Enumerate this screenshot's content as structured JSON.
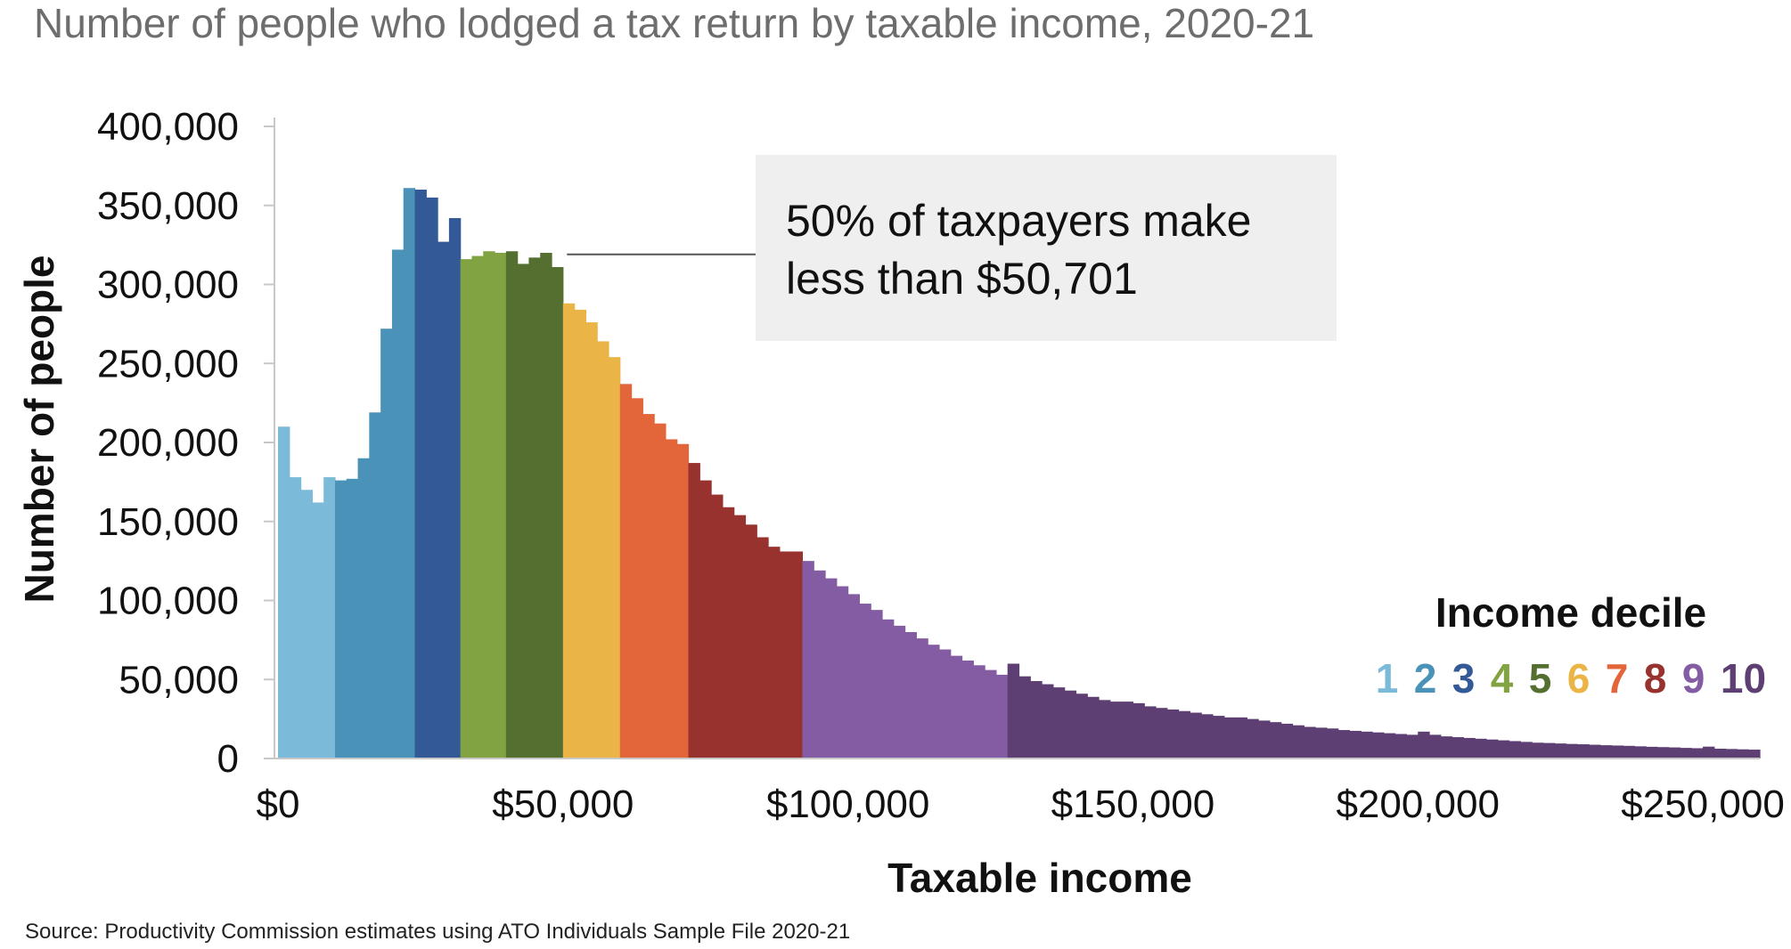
{
  "chart_data": {
    "type": "bar",
    "title": "Number of people who lodged a tax return by taxable income, 2020-21",
    "xlabel": "Taxable income",
    "ylabel": "Number of people",
    "source": "Source: Productivity Commission estimates using ATO Individuals Sample File 2020-21",
    "xlim": [
      0,
      260000
    ],
    "ylim": [
      0,
      400000
    ],
    "bin_width": 2000,
    "x_ticks": [
      {
        "value": 0,
        "label": "$0"
      },
      {
        "value": 50000,
        "label": "$50,000"
      },
      {
        "value": 100000,
        "label": "$100,000"
      },
      {
        "value": 150000,
        "label": "$150,000"
      },
      {
        "value": 200000,
        "label": "$200,000"
      },
      {
        "value": 250000,
        "label": "$250,000"
      }
    ],
    "y_ticks": [
      {
        "value": 0,
        "label": "0"
      },
      {
        "value": 50000,
        "label": "50,000"
      },
      {
        "value": 100000,
        "label": "100,000"
      },
      {
        "value": 150000,
        "label": "150,000"
      },
      {
        "value": 200000,
        "label": "200,000"
      },
      {
        "value": 250000,
        "label": "250,000"
      },
      {
        "value": 300000,
        "label": "300,000"
      },
      {
        "value": 350000,
        "label": "350,000"
      },
      {
        "value": 400000,
        "label": "400,000"
      }
    ],
    "grid": false,
    "legend": {
      "title": "Income decile",
      "position": "bottom-right",
      "items": [
        {
          "label": "1",
          "color": "#7cbad9"
        },
        {
          "label": "2",
          "color": "#4a92b8"
        },
        {
          "label": "3",
          "color": "#335a96"
        },
        {
          "label": "4",
          "color": "#81a342"
        },
        {
          "label": "5",
          "color": "#556f31"
        },
        {
          "label": "6",
          "color": "#ebb446"
        },
        {
          "label": "7",
          "color": "#e3663a"
        },
        {
          "label": "8",
          "color": "#98322e"
        },
        {
          "label": "9",
          "color": "#845ca3"
        },
        {
          "label": "10",
          "color": "#5e3f73"
        }
      ]
    },
    "annotation": {
      "lines": [
        "50% of taxpayers make",
        "less than $50,701"
      ],
      "x": 50701,
      "y": 319000
    },
    "bins": [
      {
        "x": 0,
        "y": 210000,
        "decile": 1
      },
      {
        "x": 2000,
        "y": 178000,
        "decile": 1
      },
      {
        "x": 4000,
        "y": 170000,
        "decile": 1
      },
      {
        "x": 6000,
        "y": 162000,
        "decile": 1
      },
      {
        "x": 8000,
        "y": 178000,
        "decile": 1
      },
      {
        "x": 10000,
        "y": 176000,
        "decile": 2
      },
      {
        "x": 12000,
        "y": 177000,
        "decile": 2
      },
      {
        "x": 14000,
        "y": 190000,
        "decile": 2
      },
      {
        "x": 16000,
        "y": 219000,
        "decile": 2
      },
      {
        "x": 18000,
        "y": 272000,
        "decile": 2
      },
      {
        "x": 20000,
        "y": 322000,
        "decile": 2
      },
      {
        "x": 22000,
        "y": 361000,
        "decile": 2
      },
      {
        "x": 24000,
        "y": 360000,
        "decile": 3
      },
      {
        "x": 26000,
        "y": 355000,
        "decile": 3
      },
      {
        "x": 28000,
        "y": 327000,
        "decile": 3
      },
      {
        "x": 30000,
        "y": 342000,
        "decile": 3
      },
      {
        "x": 32000,
        "y": 316000,
        "decile": 4
      },
      {
        "x": 34000,
        "y": 318000,
        "decile": 4
      },
      {
        "x": 36000,
        "y": 321000,
        "decile": 4
      },
      {
        "x": 38000,
        "y": 320000,
        "decile": 4
      },
      {
        "x": 40000,
        "y": 321000,
        "decile": 5
      },
      {
        "x": 42000,
        "y": 313000,
        "decile": 5
      },
      {
        "x": 44000,
        "y": 317000,
        "decile": 5
      },
      {
        "x": 46000,
        "y": 320000,
        "decile": 5
      },
      {
        "x": 48000,
        "y": 311000,
        "decile": 5
      },
      {
        "x": 50000,
        "y": 288000,
        "decile": 6
      },
      {
        "x": 52000,
        "y": 284000,
        "decile": 6
      },
      {
        "x": 54000,
        "y": 276000,
        "decile": 6
      },
      {
        "x": 56000,
        "y": 264000,
        "decile": 6
      },
      {
        "x": 58000,
        "y": 254000,
        "decile": 6
      },
      {
        "x": 60000,
        "y": 237000,
        "decile": 7
      },
      {
        "x": 62000,
        "y": 228000,
        "decile": 7
      },
      {
        "x": 64000,
        "y": 218000,
        "decile": 7
      },
      {
        "x": 66000,
        "y": 212000,
        "decile": 7
      },
      {
        "x": 68000,
        "y": 202000,
        "decile": 7
      },
      {
        "x": 70000,
        "y": 199000,
        "decile": 7
      },
      {
        "x": 72000,
        "y": 187000,
        "decile": 8
      },
      {
        "x": 74000,
        "y": 176000,
        "decile": 8
      },
      {
        "x": 76000,
        "y": 167000,
        "decile": 8
      },
      {
        "x": 78000,
        "y": 159000,
        "decile": 8
      },
      {
        "x": 80000,
        "y": 154000,
        "decile": 8
      },
      {
        "x": 82000,
        "y": 148000,
        "decile": 8
      },
      {
        "x": 84000,
        "y": 140000,
        "decile": 8
      },
      {
        "x": 86000,
        "y": 134000,
        "decile": 8
      },
      {
        "x": 88000,
        "y": 131000,
        "decile": 8
      },
      {
        "x": 90000,
        "y": 131000,
        "decile": 8
      },
      {
        "x": 92000,
        "y": 125000,
        "decile": 9
      },
      {
        "x": 94000,
        "y": 119000,
        "decile": 9
      },
      {
        "x": 96000,
        "y": 114000,
        "decile": 9
      },
      {
        "x": 98000,
        "y": 109000,
        "decile": 9
      },
      {
        "x": 100000,
        "y": 104000,
        "decile": 9
      },
      {
        "x": 102000,
        "y": 98000,
        "decile": 9
      },
      {
        "x": 104000,
        "y": 94000,
        "decile": 9
      },
      {
        "x": 106000,
        "y": 88000,
        "decile": 9
      },
      {
        "x": 108000,
        "y": 84000,
        "decile": 9
      },
      {
        "x": 110000,
        "y": 80000,
        "decile": 9
      },
      {
        "x": 112000,
        "y": 76000,
        "decile": 9
      },
      {
        "x": 114000,
        "y": 72000,
        "decile": 9
      },
      {
        "x": 116000,
        "y": 69000,
        "decile": 9
      },
      {
        "x": 118000,
        "y": 65000,
        "decile": 9
      },
      {
        "x": 120000,
        "y": 62000,
        "decile": 9
      },
      {
        "x": 122000,
        "y": 59000,
        "decile": 9
      },
      {
        "x": 124000,
        "y": 56000,
        "decile": 9
      },
      {
        "x": 126000,
        "y": 53000,
        "decile": 9
      },
      {
        "x": 128000,
        "y": 60000,
        "decile": 10
      },
      {
        "x": 130000,
        "y": 52000,
        "decile": 10
      },
      {
        "x": 132000,
        "y": 49000,
        "decile": 10
      },
      {
        "x": 134000,
        "y": 47000,
        "decile": 10
      },
      {
        "x": 136000,
        "y": 45000,
        "decile": 10
      },
      {
        "x": 138000,
        "y": 43000,
        "decile": 10
      },
      {
        "x": 140000,
        "y": 41000,
        "decile": 10
      },
      {
        "x": 142000,
        "y": 39000,
        "decile": 10
      },
      {
        "x": 144000,
        "y": 37000,
        "decile": 10
      },
      {
        "x": 146000,
        "y": 36000,
        "decile": 10
      },
      {
        "x": 148000,
        "y": 36000,
        "decile": 10
      },
      {
        "x": 150000,
        "y": 35000,
        "decile": 10
      },
      {
        "x": 152000,
        "y": 33000,
        "decile": 10
      },
      {
        "x": 154000,
        "y": 32000,
        "decile": 10
      },
      {
        "x": 156000,
        "y": 31000,
        "decile": 10
      },
      {
        "x": 158000,
        "y": 30000,
        "decile": 10
      },
      {
        "x": 160000,
        "y": 29000,
        "decile": 10
      },
      {
        "x": 162000,
        "y": 28000,
        "decile": 10
      },
      {
        "x": 164000,
        "y": 27000,
        "decile": 10
      },
      {
        "x": 166000,
        "y": 26000,
        "decile": 10
      },
      {
        "x": 168000,
        "y": 26000,
        "decile": 10
      },
      {
        "x": 170000,
        "y": 25000,
        "decile": 10
      },
      {
        "x": 172000,
        "y": 24000,
        "decile": 10
      },
      {
        "x": 174000,
        "y": 23000,
        "decile": 10
      },
      {
        "x": 176000,
        "y": 22000,
        "decile": 10
      },
      {
        "x": 178000,
        "y": 21000,
        "decile": 10
      },
      {
        "x": 180000,
        "y": 20000,
        "decile": 10
      },
      {
        "x": 182000,
        "y": 19500,
        "decile": 10
      },
      {
        "x": 184000,
        "y": 19000,
        "decile": 10
      },
      {
        "x": 186000,
        "y": 18000,
        "decile": 10
      },
      {
        "x": 188000,
        "y": 17500,
        "decile": 10
      },
      {
        "x": 190000,
        "y": 17000,
        "decile": 10
      },
      {
        "x": 192000,
        "y": 16500,
        "decile": 10
      },
      {
        "x": 194000,
        "y": 16000,
        "decile": 10
      },
      {
        "x": 196000,
        "y": 15500,
        "decile": 10
      },
      {
        "x": 198000,
        "y": 15000,
        "decile": 10
      },
      {
        "x": 200000,
        "y": 17000,
        "decile": 10
      },
      {
        "x": 202000,
        "y": 15000,
        "decile": 10
      },
      {
        "x": 204000,
        "y": 14000,
        "decile": 10
      },
      {
        "x": 206000,
        "y": 13500,
        "decile": 10
      },
      {
        "x": 208000,
        "y": 13000,
        "decile": 10
      },
      {
        "x": 210000,
        "y": 12500,
        "decile": 10
      },
      {
        "x": 212000,
        "y": 12000,
        "decile": 10
      },
      {
        "x": 214000,
        "y": 11500,
        "decile": 10
      },
      {
        "x": 216000,
        "y": 11000,
        "decile": 10
      },
      {
        "x": 218000,
        "y": 10500,
        "decile": 10
      },
      {
        "x": 220000,
        "y": 10000,
        "decile": 10
      },
      {
        "x": 222000,
        "y": 9800,
        "decile": 10
      },
      {
        "x": 224000,
        "y": 9500,
        "decile": 10
      },
      {
        "x": 226000,
        "y": 9200,
        "decile": 10
      },
      {
        "x": 228000,
        "y": 9000,
        "decile": 10
      },
      {
        "x": 230000,
        "y": 8700,
        "decile": 10
      },
      {
        "x": 232000,
        "y": 8400,
        "decile": 10
      },
      {
        "x": 234000,
        "y": 8200,
        "decile": 10
      },
      {
        "x": 236000,
        "y": 8000,
        "decile": 10
      },
      {
        "x": 238000,
        "y": 7700,
        "decile": 10
      },
      {
        "x": 240000,
        "y": 7400,
        "decile": 10
      },
      {
        "x": 242000,
        "y": 7200,
        "decile": 10
      },
      {
        "x": 244000,
        "y": 7000,
        "decile": 10
      },
      {
        "x": 246000,
        "y": 6700,
        "decile": 10
      },
      {
        "x": 248000,
        "y": 6500,
        "decile": 10
      },
      {
        "x": 250000,
        "y": 7500,
        "decile": 10
      },
      {
        "x": 252000,
        "y": 6200,
        "decile": 10
      },
      {
        "x": 254000,
        "y": 6000,
        "decile": 10
      },
      {
        "x": 256000,
        "y": 5800,
        "decile": 10
      },
      {
        "x": 258000,
        "y": 5600,
        "decile": 10
      }
    ]
  }
}
